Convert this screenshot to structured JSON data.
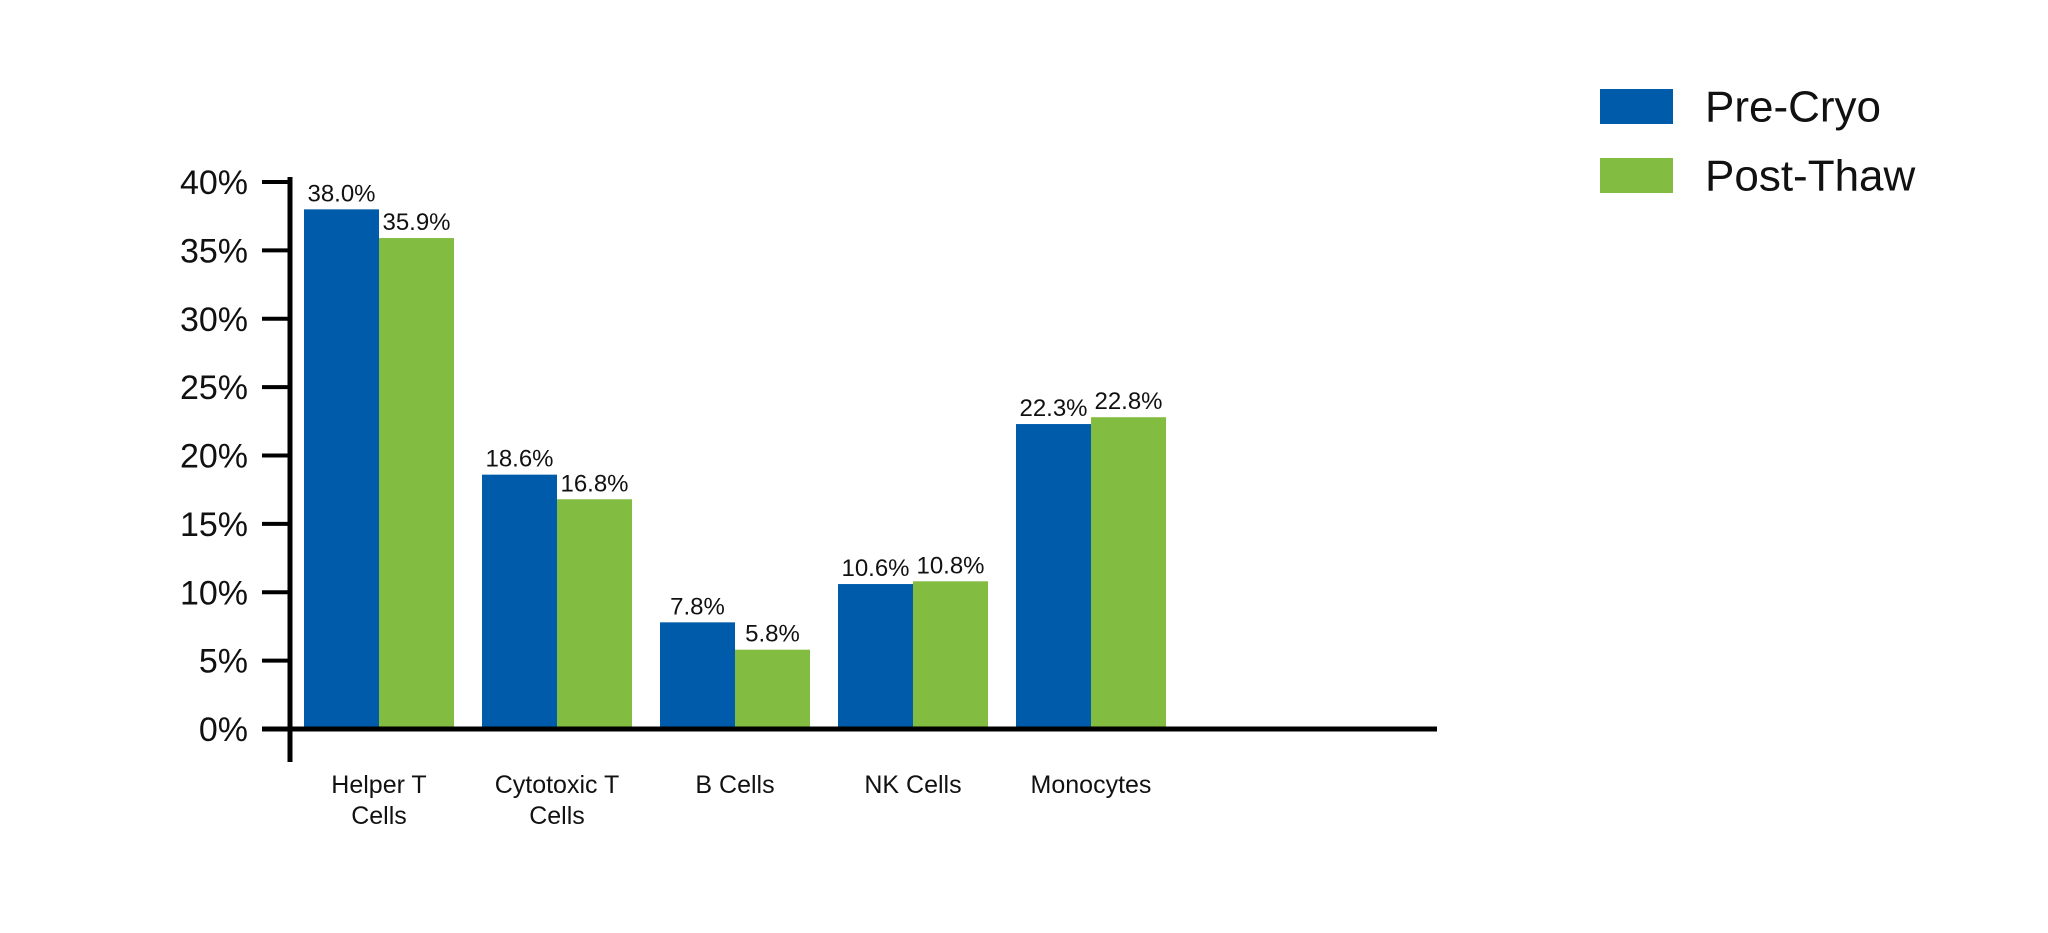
{
  "chart_data": {
    "type": "bar",
    "title": "",
    "xlabel": "",
    "ylabel": "",
    "ylim": [
      0,
      40
    ],
    "yticks": [
      0,
      5,
      10,
      15,
      20,
      25,
      30,
      35,
      40
    ],
    "ytick_labels": [
      "0%",
      "5%",
      "10%",
      "15%",
      "20%",
      "25%",
      "30%",
      "35%",
      "40%"
    ],
    "categories": [
      [
        "Helper T",
        "Cells"
      ],
      [
        "Cytotoxic T",
        "Cells"
      ],
      [
        "B Cells"
      ],
      [
        "NK Cells"
      ],
      [
        "Monocytes"
      ]
    ],
    "series": [
      {
        "name": "Pre-Cryo",
        "color": "#005BAA",
        "values": [
          38.0,
          18.6,
          7.8,
          10.6,
          22.3
        ],
        "labels": [
          "38.0%",
          "18.6%",
          "7.8%",
          "10.6%",
          "22.3%"
        ]
      },
      {
        "name": "Post-Thaw",
        "color": "#82BC41",
        "values": [
          35.9,
          16.8,
          5.8,
          10.8,
          22.8
        ],
        "labels": [
          "35.9%",
          "16.8%",
          "5.8%",
          "10.8%",
          "22.8%"
        ]
      }
    ],
    "legend": "top-right",
    "grid": false
  }
}
